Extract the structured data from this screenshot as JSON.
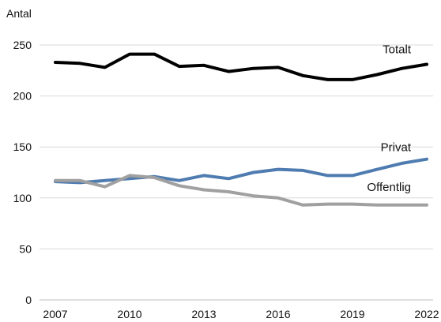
{
  "chart_data": {
    "type": "line",
    "title": "",
    "xlabel": "",
    "ylabel": "Antal",
    "ylim": [
      0,
      250
    ],
    "xlim": [
      2007,
      2022
    ],
    "yticks": [
      0,
      50,
      100,
      150,
      200,
      250
    ],
    "xticks": [
      2007,
      2010,
      2013,
      2016,
      2019,
      2022
    ],
    "grid": true,
    "x": [
      2007,
      2008,
      2009,
      2010,
      2011,
      2012,
      2013,
      2014,
      2015,
      2016,
      2017,
      2018,
      2019,
      2020,
      2021,
      2022
    ],
    "series": [
      {
        "name": "Totalt",
        "color": "#000000",
        "values": [
          233,
          232,
          228,
          241,
          241,
          229,
          230,
          224,
          227,
          228,
          220,
          216,
          216,
          221,
          227,
          231
        ]
      },
      {
        "name": "Privat",
        "color": "#4f7cb0",
        "values": [
          116,
          115,
          117,
          119,
          121,
          117,
          122,
          119,
          125,
          128,
          127,
          122,
          122,
          128,
          134,
          138
        ]
      },
      {
        "name": "Offentlig",
        "color": "#a0a0a0",
        "values": [
          117,
          117,
          111,
          122,
          120,
          112,
          108,
          106,
          102,
          100,
          93,
          94,
          94,
          93,
          93,
          93
        ]
      }
    ]
  }
}
